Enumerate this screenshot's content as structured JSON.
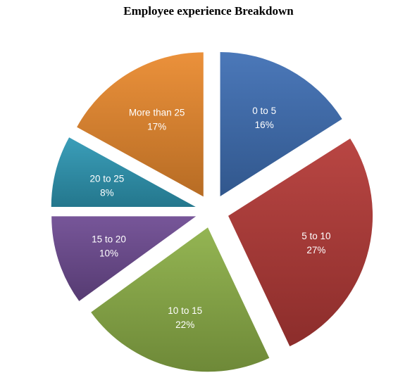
{
  "chart_data": {
    "type": "pie",
    "title": "Employee experience Breakdown",
    "slices": [
      {
        "label": "0 to 5",
        "value": 16,
        "percent_label": "16%",
        "color": "#3f6fb5"
      },
      {
        "label": "5 to 10",
        "value": 27,
        "percent_label": "27%",
        "color": "#b43a37"
      },
      {
        "label": "10 to 15",
        "value": 22,
        "percent_label": "22%",
        "color": "#8db048"
      },
      {
        "label": "15 to 20",
        "value": 10,
        "percent_label": "10%",
        "color": "#6e4b92"
      },
      {
        "label": "20 to 25",
        "value": 8,
        "percent_label": "8%",
        "color": "#2e98b5"
      },
      {
        "label": "More than 25",
        "value": 17,
        "percent_label": "17%",
        "color": "#ea8a2e"
      }
    ],
    "exploded": true,
    "legend": "none"
  }
}
